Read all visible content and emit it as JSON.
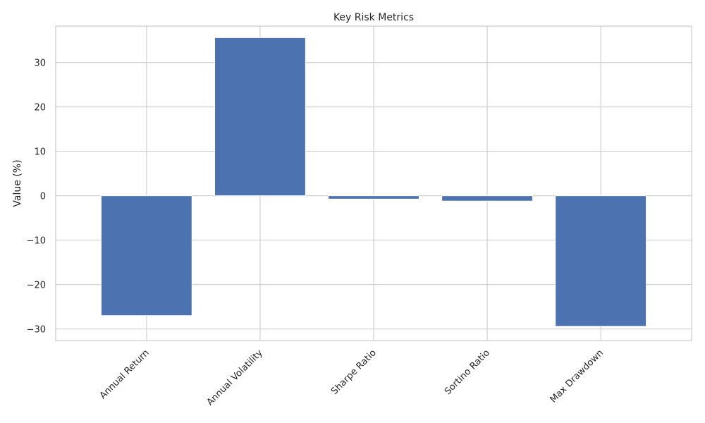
{
  "chart_data": {
    "type": "bar",
    "title": "Key Risk Metrics",
    "xlabel": "",
    "ylabel": "Value (%)",
    "categories": [
      "Annual Return",
      "Annual Volatility",
      "Sharpe Ratio",
      "Sortino Ratio",
      "Max Drawdown"
    ],
    "values": [
      -27.0,
      35.6,
      -0.75,
      -1.2,
      -29.4
    ],
    "ylim": [
      -32.6,
      38.2
    ],
    "yticks": [
      -30,
      -20,
      -10,
      0,
      10,
      20,
      30
    ],
    "ytick_labels": [
      "−30",
      "−20",
      "−10",
      "0",
      "10",
      "20",
      "30"
    ],
    "grid": true,
    "bar_color": "#4c72b0",
    "grid_color": "#cccccc",
    "label_rotation_deg": 45
  }
}
